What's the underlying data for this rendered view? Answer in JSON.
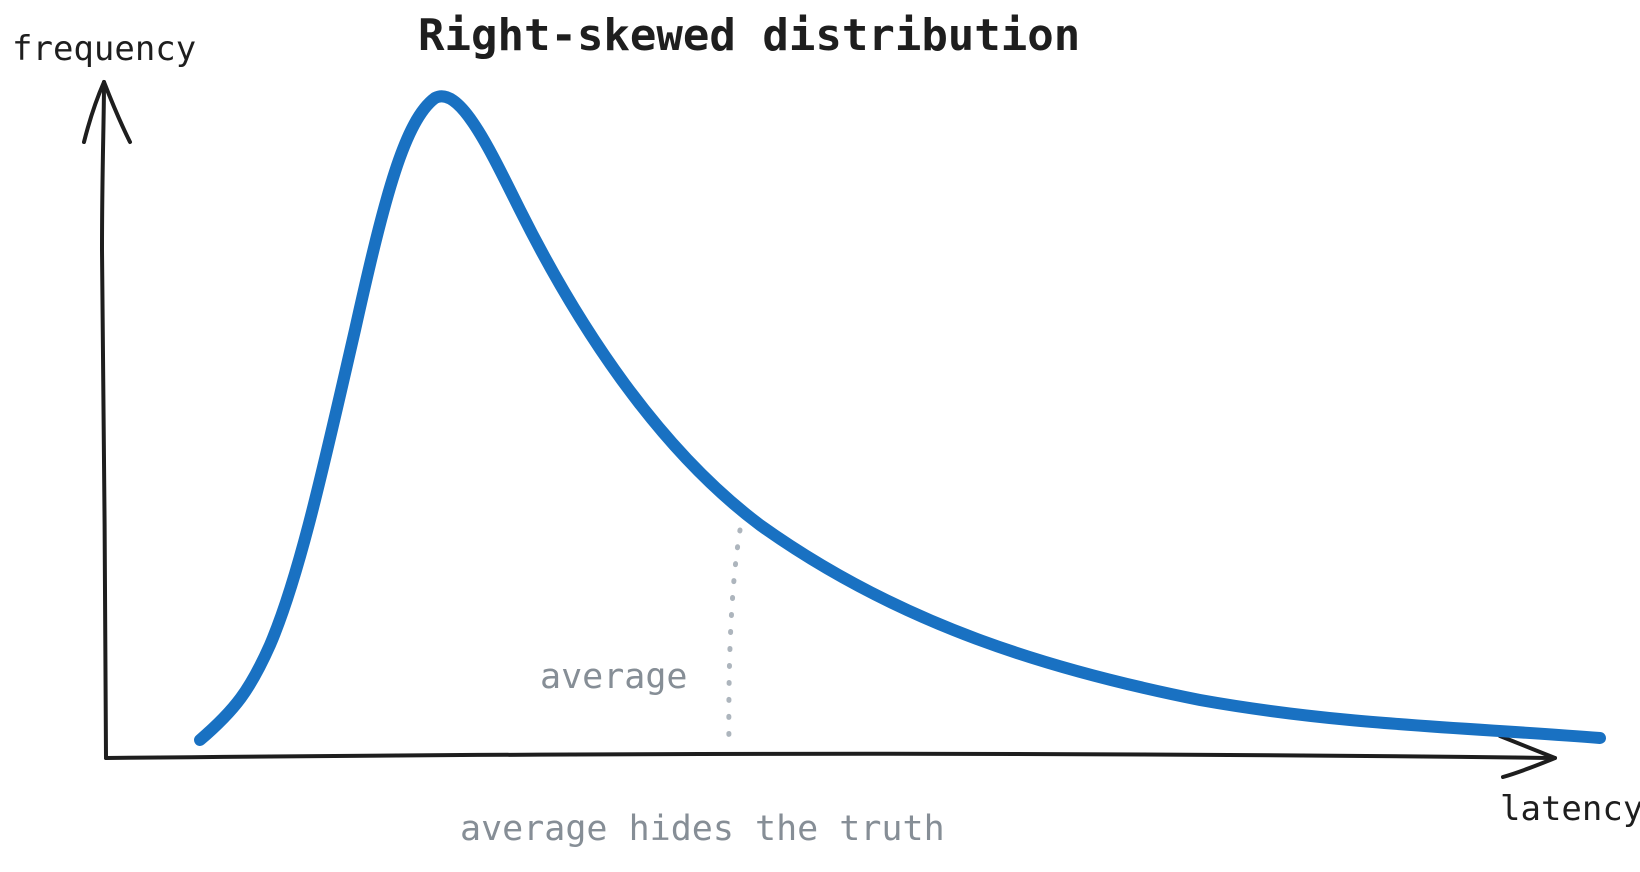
{
  "title": "Right-skewed distribution",
  "y_axis_label": "frequency",
  "x_axis_label": "latency",
  "average_label": "average",
  "caption": "average hides the truth",
  "colors": {
    "curve": "#1971c2",
    "axes": "#1e1e1e",
    "annotation": "#868e96",
    "marker": "#adb5bd"
  },
  "icons": [
    "y-axis-arrowhead",
    "x-axis-arrowhead"
  ]
}
